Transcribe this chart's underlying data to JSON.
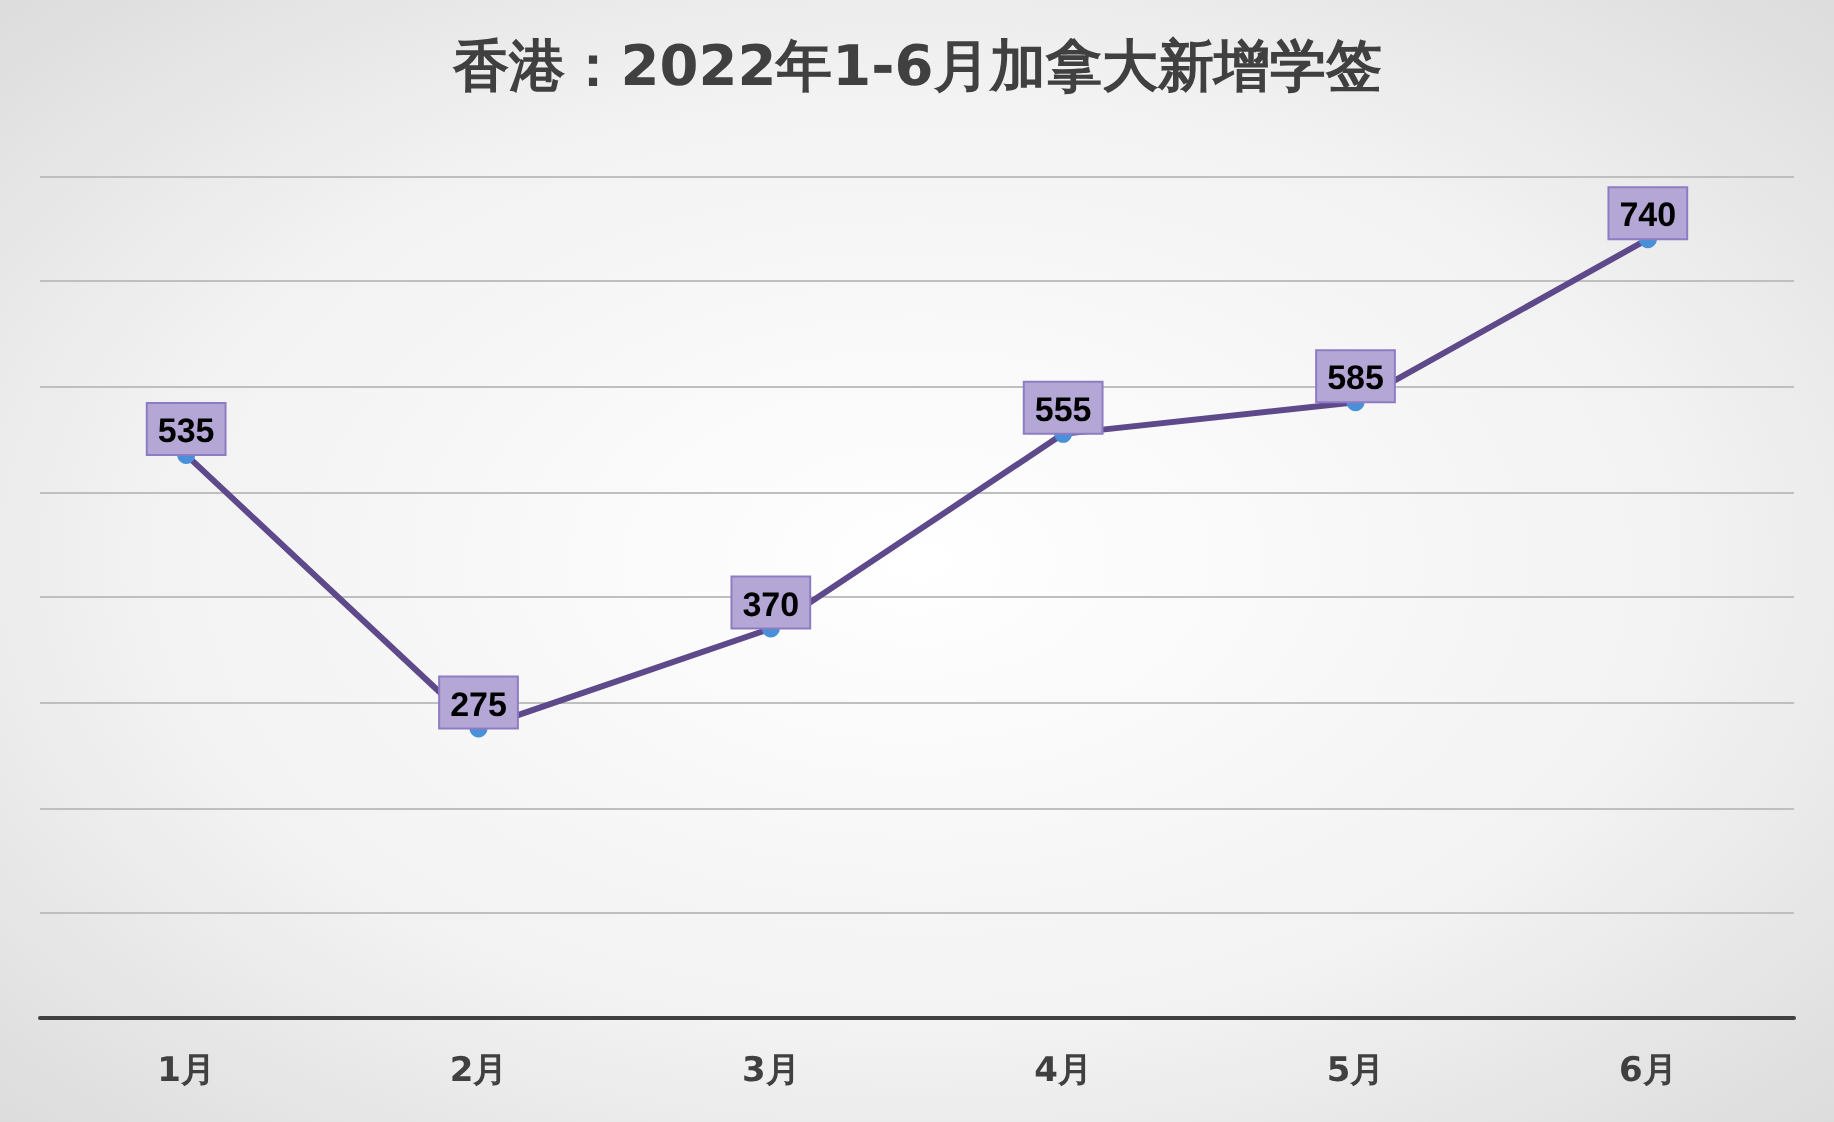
{
  "chart_data": {
    "type": "line",
    "title": "香港：2022年1-6月加拿大新增学签",
    "categories": [
      "1月",
      "2月",
      "3月",
      "4月",
      "5月",
      "6月"
    ],
    "series": [
      {
        "color": "#5e4a8b",
        "values": [
          535,
          275,
          370,
          555,
          585,
          740
        ]
      }
    ],
    "ylim": [
      0,
      800
    ],
    "yticks": [
      {
        "value": 0,
        "label": null
      },
      {
        "value": 100,
        "label": null
      },
      {
        "value": 200,
        "label": null
      },
      {
        "value": 300,
        "label": null
      },
      {
        "value": 400,
        "label": null
      },
      {
        "value": 500,
        "label": null
      },
      {
        "value": 600,
        "label": null
      },
      {
        "value": 700,
        "label": null
      },
      {
        "value": 800,
        "label": null
      }
    ],
    "tick_labels": "x",
    "grid": "y",
    "data_labels": true,
    "marker": "circle",
    "line_style": "solid"
  }
}
